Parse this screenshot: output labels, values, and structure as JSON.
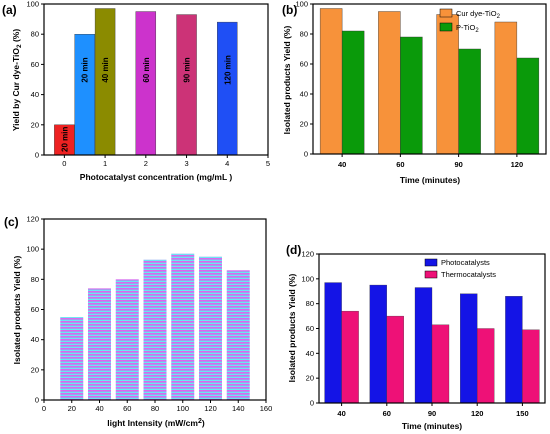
{
  "chart_data": [
    {
      "panel": "(a)",
      "type": "bar",
      "xlabel": "Photocatalyst concentration (mg/mL )",
      "ylabel": "Yield by Cur dye-TiO2 (%)",
      "xlim": [
        -0.5,
        5
      ],
      "ylim": [
        0,
        100
      ],
      "xticks": [
        "0",
        "1",
        "2",
        "3",
        "4",
        "5"
      ],
      "yticks": [
        "0",
        "20",
        "40",
        "60",
        "80",
        "100"
      ],
      "bars": [
        {
          "x": 0,
          "value": 20,
          "label": "20 min",
          "color": "#ee2222"
        },
        {
          "x": 0.5,
          "value": 80,
          "label": "20 min",
          "color": "#1e90ff"
        },
        {
          "x": 1,
          "value": 97,
          "label": "40 min",
          "color": "#8b8b00"
        },
        {
          "x": 2,
          "value": 95,
          "label": "60 min",
          "color": "#cc33cc"
        },
        {
          "x": 3,
          "value": 93,
          "label": "90 min",
          "color": "#cc3377"
        },
        {
          "x": 4,
          "value": 88,
          "label": "120 min",
          "color": "#1f4ff5"
        }
      ]
    },
    {
      "panel": "(b)",
      "type": "bar",
      "xlabel": "Time (minutes)",
      "ylabel": "Isolated products Yield (%)",
      "ylim": [
        0,
        100
      ],
      "categories": [
        "40",
        "60",
        "90",
        "120"
      ],
      "yticks": [
        "0",
        "20",
        "40",
        "60",
        "80",
        "100"
      ],
      "legend_position": "top-right",
      "series": [
        {
          "name": "Cur dye-TiO2",
          "color": "#f7923a",
          "values": [
            97,
            95,
            93,
            88
          ]
        },
        {
          "name": "P-TiO2",
          "color": "#0a9a0a",
          "values": [
            82,
            78,
            70,
            64
          ]
        }
      ]
    },
    {
      "panel": "(c)",
      "type": "bar",
      "xlabel": "light Intensity (mW/cm2)",
      "ylabel": "Isolated products Yield (%)",
      "xlim": [
        0,
        160
      ],
      "ylim": [
        0,
        120
      ],
      "xticks": [
        "0",
        "20",
        "40",
        "60",
        "80",
        "100",
        "120",
        "140",
        "160"
      ],
      "yticks": [
        "0",
        "20",
        "40",
        "60",
        "80",
        "100",
        "120"
      ],
      "x": [
        20,
        40,
        60,
        80,
        100,
        120,
        140
      ],
      "values": [
        55,
        74,
        80,
        93,
        97,
        95,
        86
      ]
    },
    {
      "panel": "(d)",
      "type": "bar",
      "xlabel": "Time (minutes)",
      "ylabel": "Isolated products Yield (%)",
      "ylim": [
        0,
        120
      ],
      "categories": [
        "40",
        "60",
        "90",
        "120",
        "150"
      ],
      "yticks": [
        "0",
        "20",
        "40",
        "60",
        "80",
        "100",
        "120"
      ],
      "legend_position": "top-right",
      "series": [
        {
          "name": "Photocatalysts",
          "color": "#1414e6",
          "values": [
            97,
            95,
            93,
            88,
            86
          ]
        },
        {
          "name": "Thermocatalysts",
          "color": "#ee1177",
          "values": [
            74,
            70,
            63,
            60,
            59
          ]
        }
      ]
    }
  ]
}
